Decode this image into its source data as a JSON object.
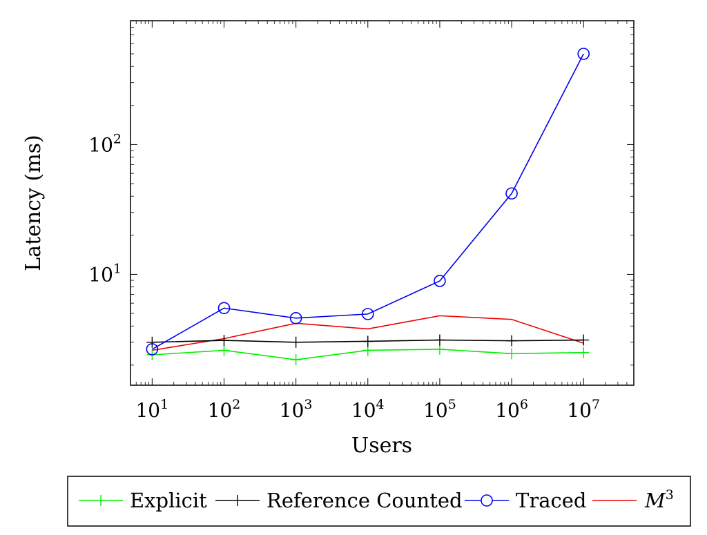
{
  "chart_data": {
    "type": "line",
    "xlabel": "Users",
    "ylabel": "Latency (ms)",
    "x_scale": "log",
    "y_scale": "log",
    "x": [
      10,
      100,
      1000,
      10000,
      100000,
      1000000,
      10000000
    ],
    "x_ticks": [
      {
        "base": "10",
        "exp": "1"
      },
      {
        "base": "10",
        "exp": "2"
      },
      {
        "base": "10",
        "exp": "3"
      },
      {
        "base": "10",
        "exp": "4"
      },
      {
        "base": "10",
        "exp": "5"
      },
      {
        "base": "10",
        "exp": "6"
      },
      {
        "base": "10",
        "exp": "7"
      }
    ],
    "y_ticks": [
      {
        "base": "10",
        "exp": "1",
        "value": 10
      },
      {
        "base": "10",
        "exp": "2",
        "value": 100
      }
    ],
    "xlim": [
      5,
      50000000
    ],
    "ylim": [
      1.4,
      900
    ],
    "grid": false,
    "legend_position": "bottom",
    "series": [
      {
        "name": "Explicit",
        "color": "#00ee00",
        "marker": "plus",
        "values": [
          2.4,
          2.6,
          2.2,
          2.6,
          2.65,
          2.45,
          2.5
        ]
      },
      {
        "name": "Reference Counted",
        "color": "#000000",
        "marker": "plus",
        "values": [
          3.0,
          3.1,
          3.0,
          3.05,
          3.12,
          3.08,
          3.12
        ]
      },
      {
        "name": "Traced",
        "color": "#0000ee",
        "marker": "circle",
        "values": [
          2.65,
          5.5,
          4.6,
          4.95,
          8.9,
          42,
          500
        ]
      },
      {
        "name": "M",
        "name_sup": "3",
        "color": "#ee0000",
        "marker": "none",
        "values": [
          2.6,
          3.2,
          4.2,
          3.8,
          4.8,
          4.5,
          2.95
        ]
      }
    ]
  }
}
